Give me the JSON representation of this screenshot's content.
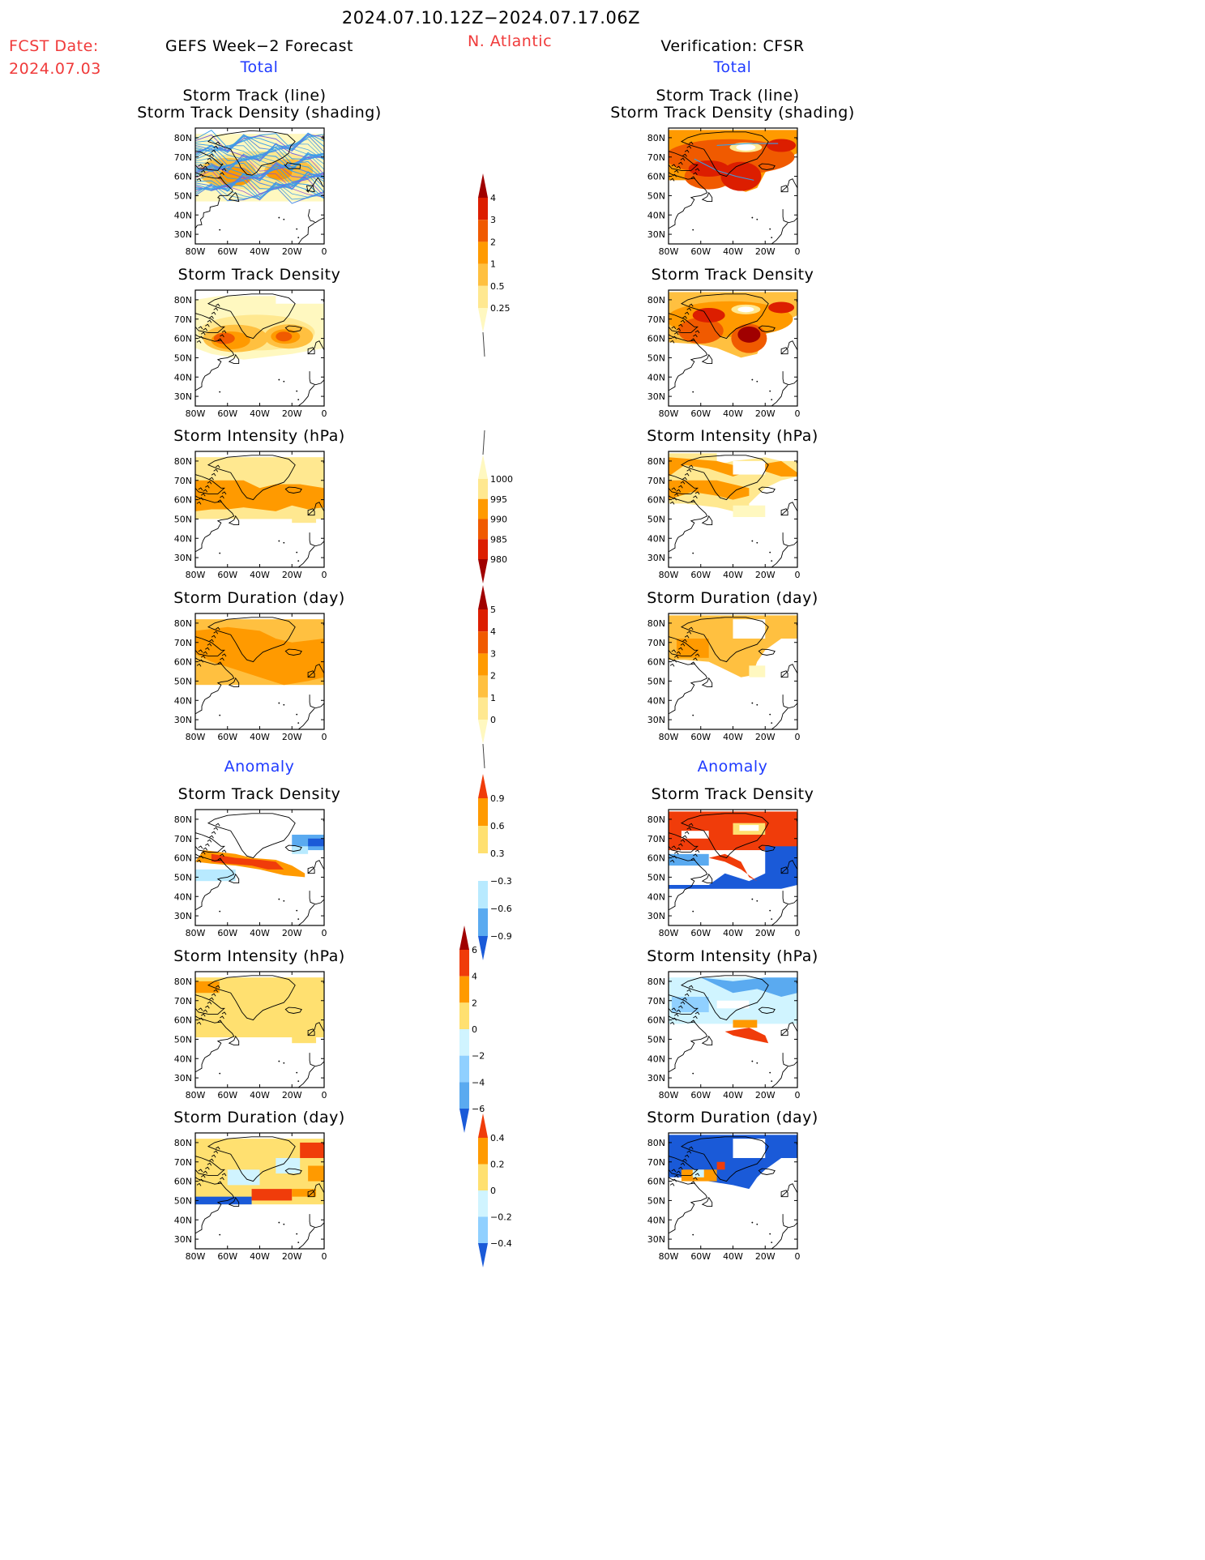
{
  "header": {
    "period": "2024.07.10.12Z−2024.07.17.06Z",
    "fcst_label": "FCST Date:",
    "fcst_date": "2024.07.03",
    "left_title": "GEFS Week−2 Forecast",
    "region": "N. Atlantic",
    "right_title": "Verification: CFSR",
    "total_label": "Total",
    "anomaly_label": "Anomaly"
  },
  "panel_titles": {
    "track_line_1": "Storm Track (line)",
    "track_line_2": "Storm Track Density (shading)",
    "density": "Storm Track Density",
    "intensity": "Storm Intensity (hPa)",
    "duration": "Storm Duration (day)"
  },
  "axes": {
    "lat_ticks": [
      "80N",
      "70N",
      "60N",
      "50N",
      "40N",
      "30N"
    ],
    "lon_ticks": [
      "80W",
      "60W",
      "40W",
      "20W",
      "0"
    ]
  },
  "colorbars": {
    "density_total": {
      "labels": [
        "4",
        "3",
        "2",
        "1",
        "0.5",
        "0.25"
      ],
      "colors": [
        "#a00000",
        "#dc1e00",
        "#f05a00",
        "#ff9a00",
        "#ffc040",
        "#ffe890",
        "#fff8c0"
      ]
    },
    "intensity_total": {
      "labels": [
        "1000",
        "995",
        "990",
        "985",
        "980"
      ],
      "colors": [
        "#fff8c0",
        "#ffe890",
        "#ff9a00",
        "#f05a00",
        "#dc1e00",
        "#a00000"
      ]
    },
    "duration_total": {
      "labels": [
        "5",
        "4",
        "3",
        "2",
        "1",
        "0"
      ],
      "colors": [
        "#a00000",
        "#dc1e00",
        "#f05a00",
        "#ff9a00",
        "#ffc040",
        "#ffe890",
        "#fff8c0"
      ]
    },
    "density_anom": {
      "labels": [
        "0.9",
        "0.6",
        "0.3",
        "−0.3",
        "−0.6",
        "−0.9"
      ],
      "colors": [
        "#f03c0a",
        "#ff9a00",
        "#ffe070",
        "#ffffff",
        "#b8eaff",
        "#5aaaf0",
        "#1a5ad8"
      ]
    },
    "intensity_anom": {
      "labels": [
        "6",
        "4",
        "2",
        "0",
        "−2",
        "−4",
        "−6"
      ],
      "colors": [
        "#a00000",
        "#f03c0a",
        "#ff9a00",
        "#ffe070",
        "#d0f4ff",
        "#90d0ff",
        "#5aaaf0",
        "#1a5ad8"
      ]
    },
    "duration_anom": {
      "labels": [
        "0.4",
        "0.2",
        "0",
        "−0.2",
        "−0.4"
      ],
      "colors": [
        "#f03c0a",
        "#ff9a00",
        "#ffe070",
        "#d0f4ff",
        "#90d0ff",
        "#1a5ad8"
      ]
    }
  }
}
